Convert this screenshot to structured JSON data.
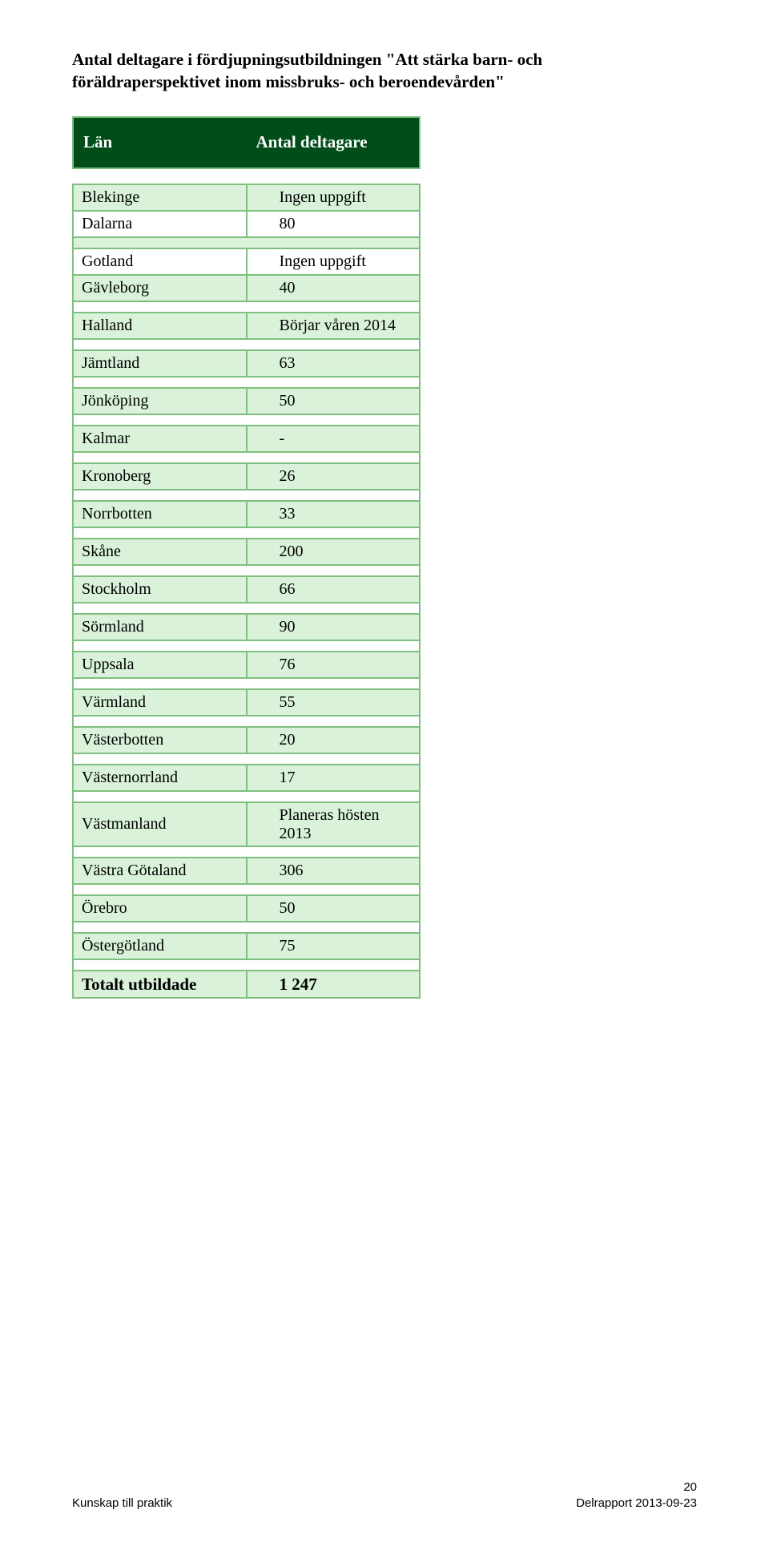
{
  "title_line1": "Antal deltagare i fördjupningsutbildningen \"Att stärka barn- och",
  "title_line2": "föräldraperspektivet inom missbruks- och beroendevården\"",
  "header": {
    "col1": "Län",
    "col2": "Antal deltagare"
  },
  "rows": [
    {
      "lan": "Blekinge",
      "val": "Ingen uppgift",
      "shade": "even"
    },
    {
      "lan": "Dalarna",
      "val": "80",
      "shade": "odd"
    },
    {
      "spacer": true,
      "shade": "even"
    },
    {
      "lan": "Gotland",
      "val": "Ingen uppgift",
      "shade": "odd"
    },
    {
      "lan": "Gävleborg",
      "val": "40",
      "shade": "even"
    },
    {
      "spacer": true,
      "shade": "odd"
    },
    {
      "lan": "Halland",
      "val": "Börjar våren 2014",
      "shade": "even"
    },
    {
      "spacer": true,
      "shade": "odd"
    },
    {
      "lan": "Jämtland",
      "val": "63",
      "shade": "even"
    },
    {
      "spacer": true,
      "shade": "odd"
    },
    {
      "lan": "Jönköping",
      "val": "50",
      "shade": "even"
    },
    {
      "spacer": true,
      "shade": "odd"
    },
    {
      "lan": "Kalmar",
      "val": "-",
      "shade": "even"
    },
    {
      "spacer": true,
      "shade": "odd"
    },
    {
      "lan": "Kronoberg",
      "val": "26",
      "shade": "even"
    },
    {
      "spacer": true,
      "shade": "odd"
    },
    {
      "lan": "Norrbotten",
      "val": "33",
      "shade": "even"
    },
    {
      "spacer": true,
      "shade": "odd"
    },
    {
      "lan": "Skåne",
      "val": "200",
      "shade": "even"
    },
    {
      "spacer": true,
      "shade": "odd"
    },
    {
      "lan": "Stockholm",
      "val": "66",
      "shade": "even"
    },
    {
      "spacer": true,
      "shade": "odd"
    },
    {
      "lan": "Sörmland",
      "val": "90",
      "shade": "even"
    },
    {
      "spacer": true,
      "shade": "odd"
    },
    {
      "lan": "Uppsala",
      "val": "76",
      "shade": "even"
    },
    {
      "spacer": true,
      "shade": "odd"
    },
    {
      "lan": "Värmland",
      "val": "55",
      "shade": "even"
    },
    {
      "spacer": true,
      "shade": "odd"
    },
    {
      "lan": "Västerbotten",
      "val": "20",
      "shade": "even"
    },
    {
      "spacer": true,
      "shade": "odd"
    },
    {
      "lan": "Västernorrland",
      "val": "17",
      "shade": "even"
    },
    {
      "spacer": true,
      "shade": "odd"
    },
    {
      "lan": "Västmanland",
      "val": "Planeras hösten 2013",
      "shade": "even"
    },
    {
      "spacer": true,
      "shade": "odd"
    },
    {
      "lan": "Västra Götaland",
      "val": "306",
      "shade": "even"
    },
    {
      "spacer": true,
      "shade": "odd"
    },
    {
      "lan": "Örebro",
      "val": "50",
      "shade": "even"
    },
    {
      "spacer": true,
      "shade": "odd"
    },
    {
      "lan": "Östergötland",
      "val": "75",
      "shade": "even"
    },
    {
      "spacer": true,
      "shade": "odd"
    }
  ],
  "total": {
    "label": "Totalt utbildade",
    "value": "1 247"
  },
  "footer": {
    "left": "Kunskap till praktik",
    "center": "Delrapport 2013-09-23",
    "page": "20"
  },
  "colors": {
    "header_bg": "#004d1a",
    "header_text": "#ffffff",
    "border": "#7fbf7f",
    "shade_even": "#d9f2d9",
    "shade_odd": "#ffffff"
  }
}
